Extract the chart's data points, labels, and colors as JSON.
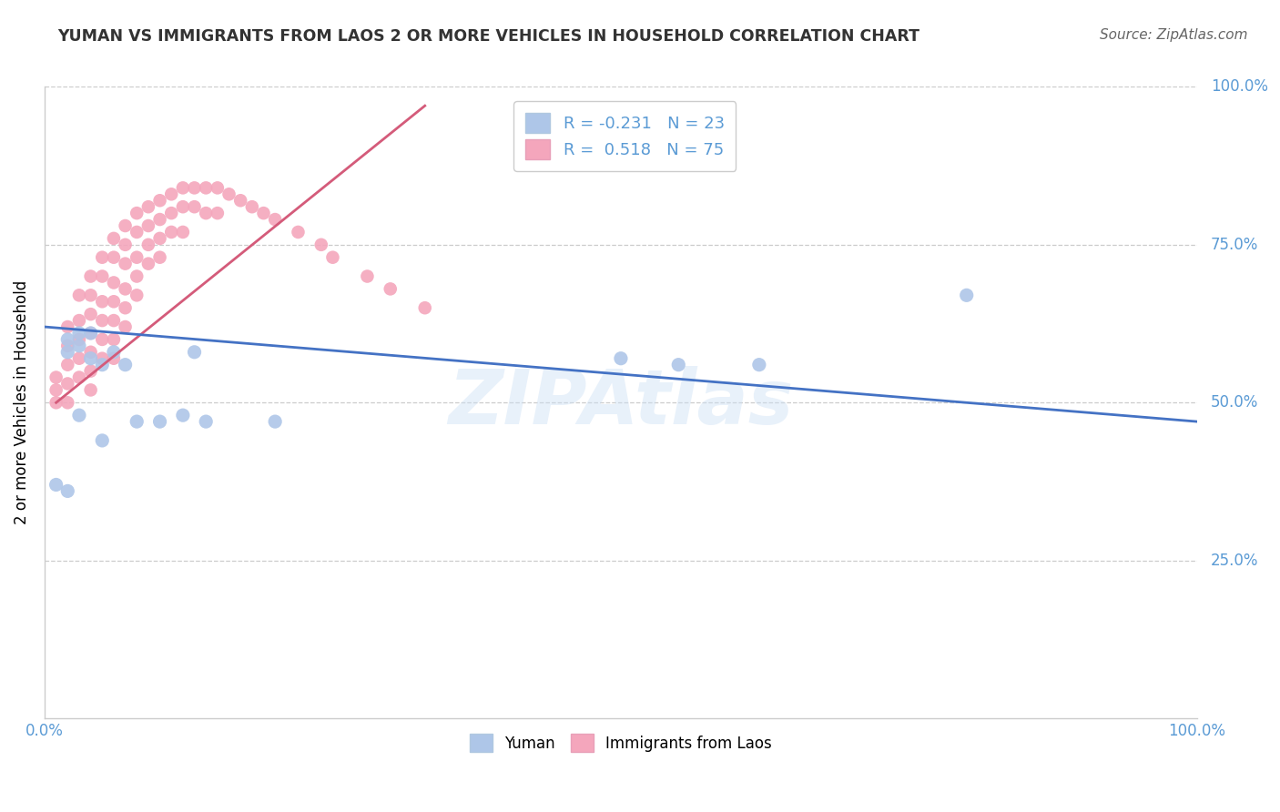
{
  "title": "YUMAN VS IMMIGRANTS FROM LAOS 2 OR MORE VEHICLES IN HOUSEHOLD CORRELATION CHART",
  "source": "Source: ZipAtlas.com",
  "ylabel": "2 or more Vehicles in Household",
  "watermark": "ZIPAtlas",
  "yuman_color": "#aec6e8",
  "laos_color": "#f4a6bc",
  "trendline_yuman_color": "#4472c4",
  "trendline_laos_color": "#d45b7a",
  "legend_box_yuman": "#aec6e8",
  "legend_box_laos": "#f4a6bc",
  "R_yuman": -0.231,
  "N_yuman": 23,
  "R_laos": 0.518,
  "N_laos": 75,
  "xlim": [
    0.0,
    1.0
  ],
  "ylim": [
    0.0,
    1.0
  ],
  "background_color": "#ffffff",
  "grid_color": "#cccccc",
  "label_color": "#5b9bd5",
  "title_color": "#333333",
  "yuman_x": [
    0.01,
    0.02,
    0.02,
    0.03,
    0.03,
    0.04,
    0.04,
    0.05,
    0.06,
    0.13,
    0.14,
    0.2,
    0.5,
    0.55,
    0.62,
    0.8,
    0.02,
    0.03,
    0.05,
    0.07,
    0.08,
    0.1,
    0.12
  ],
  "yuman_y": [
    0.37,
    0.6,
    0.58,
    0.61,
    0.59,
    0.61,
    0.57,
    0.56,
    0.58,
    0.58,
    0.47,
    0.47,
    0.57,
    0.56,
    0.56,
    0.67,
    0.36,
    0.48,
    0.44,
    0.56,
    0.47,
    0.47,
    0.48
  ],
  "laos_x": [
    0.01,
    0.01,
    0.01,
    0.02,
    0.02,
    0.02,
    0.02,
    0.02,
    0.03,
    0.03,
    0.03,
    0.03,
    0.03,
    0.04,
    0.04,
    0.04,
    0.04,
    0.04,
    0.04,
    0.04,
    0.05,
    0.05,
    0.05,
    0.05,
    0.05,
    0.05,
    0.06,
    0.06,
    0.06,
    0.06,
    0.06,
    0.06,
    0.06,
    0.07,
    0.07,
    0.07,
    0.07,
    0.07,
    0.07,
    0.08,
    0.08,
    0.08,
    0.08,
    0.08,
    0.09,
    0.09,
    0.09,
    0.09,
    0.1,
    0.1,
    0.1,
    0.1,
    0.11,
    0.11,
    0.11,
    0.12,
    0.12,
    0.12,
    0.13,
    0.13,
    0.14,
    0.14,
    0.15,
    0.15,
    0.16,
    0.17,
    0.18,
    0.19,
    0.2,
    0.22,
    0.24,
    0.25,
    0.28,
    0.3,
    0.33
  ],
  "laos_y": [
    0.54,
    0.52,
    0.5,
    0.62,
    0.59,
    0.56,
    0.53,
    0.5,
    0.67,
    0.63,
    0.6,
    0.57,
    0.54,
    0.7,
    0.67,
    0.64,
    0.61,
    0.58,
    0.55,
    0.52,
    0.73,
    0.7,
    0.66,
    0.63,
    0.6,
    0.57,
    0.76,
    0.73,
    0.69,
    0.66,
    0.63,
    0.6,
    0.57,
    0.78,
    0.75,
    0.72,
    0.68,
    0.65,
    0.62,
    0.8,
    0.77,
    0.73,
    0.7,
    0.67,
    0.81,
    0.78,
    0.75,
    0.72,
    0.82,
    0.79,
    0.76,
    0.73,
    0.83,
    0.8,
    0.77,
    0.84,
    0.81,
    0.77,
    0.84,
    0.81,
    0.84,
    0.8,
    0.84,
    0.8,
    0.83,
    0.82,
    0.81,
    0.8,
    0.79,
    0.77,
    0.75,
    0.73,
    0.7,
    0.68,
    0.65
  ],
  "laos_trend_x": [
    0.01,
    0.33
  ],
  "laos_trend_y": [
    0.5,
    0.97
  ],
  "yuman_trend_x": [
    0.0,
    1.0
  ],
  "yuman_trend_y": [
    0.62,
    0.47
  ]
}
